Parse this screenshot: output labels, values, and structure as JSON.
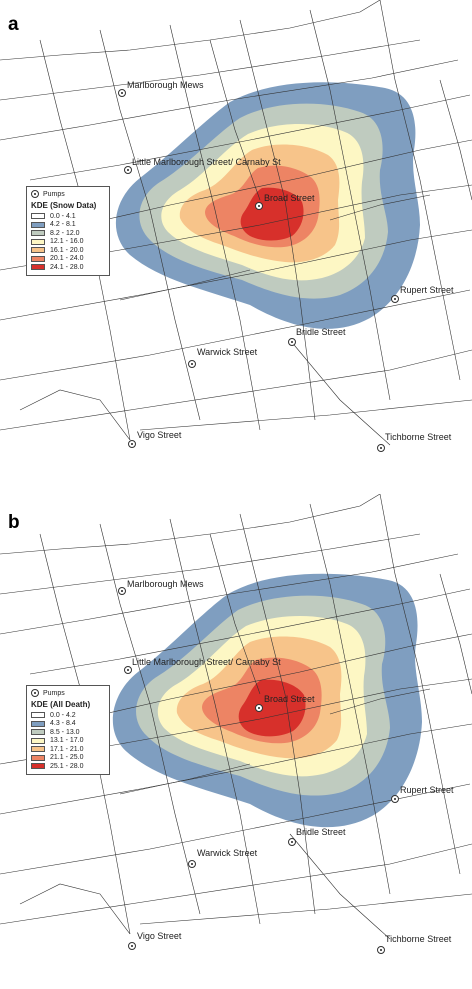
{
  "panels": [
    {
      "letter": "a",
      "legend": {
        "pump_label": "Pumps",
        "title": "KDE (Snow Data)",
        "classes": [
          {
            "range": "0.0 -  4.1",
            "color": "#ffffff"
          },
          {
            "range": "4.2 -  8.1",
            "color": "#7f9ec0"
          },
          {
            "range": "8.2 - 12.0",
            "color": "#bfcbbf"
          },
          {
            "range": "12.1 - 16.0",
            "color": "#fdf7c4"
          },
          {
            "range": "16.1 - 20.0",
            "color": "#f7c48a"
          },
          {
            "range": "20.1 - 24.0",
            "color": "#ed8464"
          },
          {
            "range": "24.1 - 28.0",
            "color": "#d7302b"
          }
        ]
      }
    },
    {
      "letter": "b",
      "legend": {
        "pump_label": "Pumps",
        "title": "KDE (All Death)",
        "classes": [
          {
            "range": "0.0 -  4.2",
            "color": "#ffffff"
          },
          {
            "range": "4.3 -  8.4",
            "color": "#7f9ec0"
          },
          {
            "range": "8.5 - 13.0",
            "color": "#bfcbbf"
          },
          {
            "range": "13.1 - 17.0",
            "color": "#fdf7c4"
          },
          {
            "range": "17.1 - 21.0",
            "color": "#f7c48a"
          },
          {
            "range": "21.1 - 25.0",
            "color": "#ed8464"
          },
          {
            "range": "25.1 - 28.0",
            "color": "#d7302b"
          }
        ]
      }
    }
  ],
  "pumps": [
    "Marlborough Mews",
    "Little Marlborough Street/ Carnaby St",
    "Broad Street",
    "Rupert Street",
    "Bridle Street",
    "Warwick Street",
    "Vigo Street",
    "Tichborne Street"
  ]
}
